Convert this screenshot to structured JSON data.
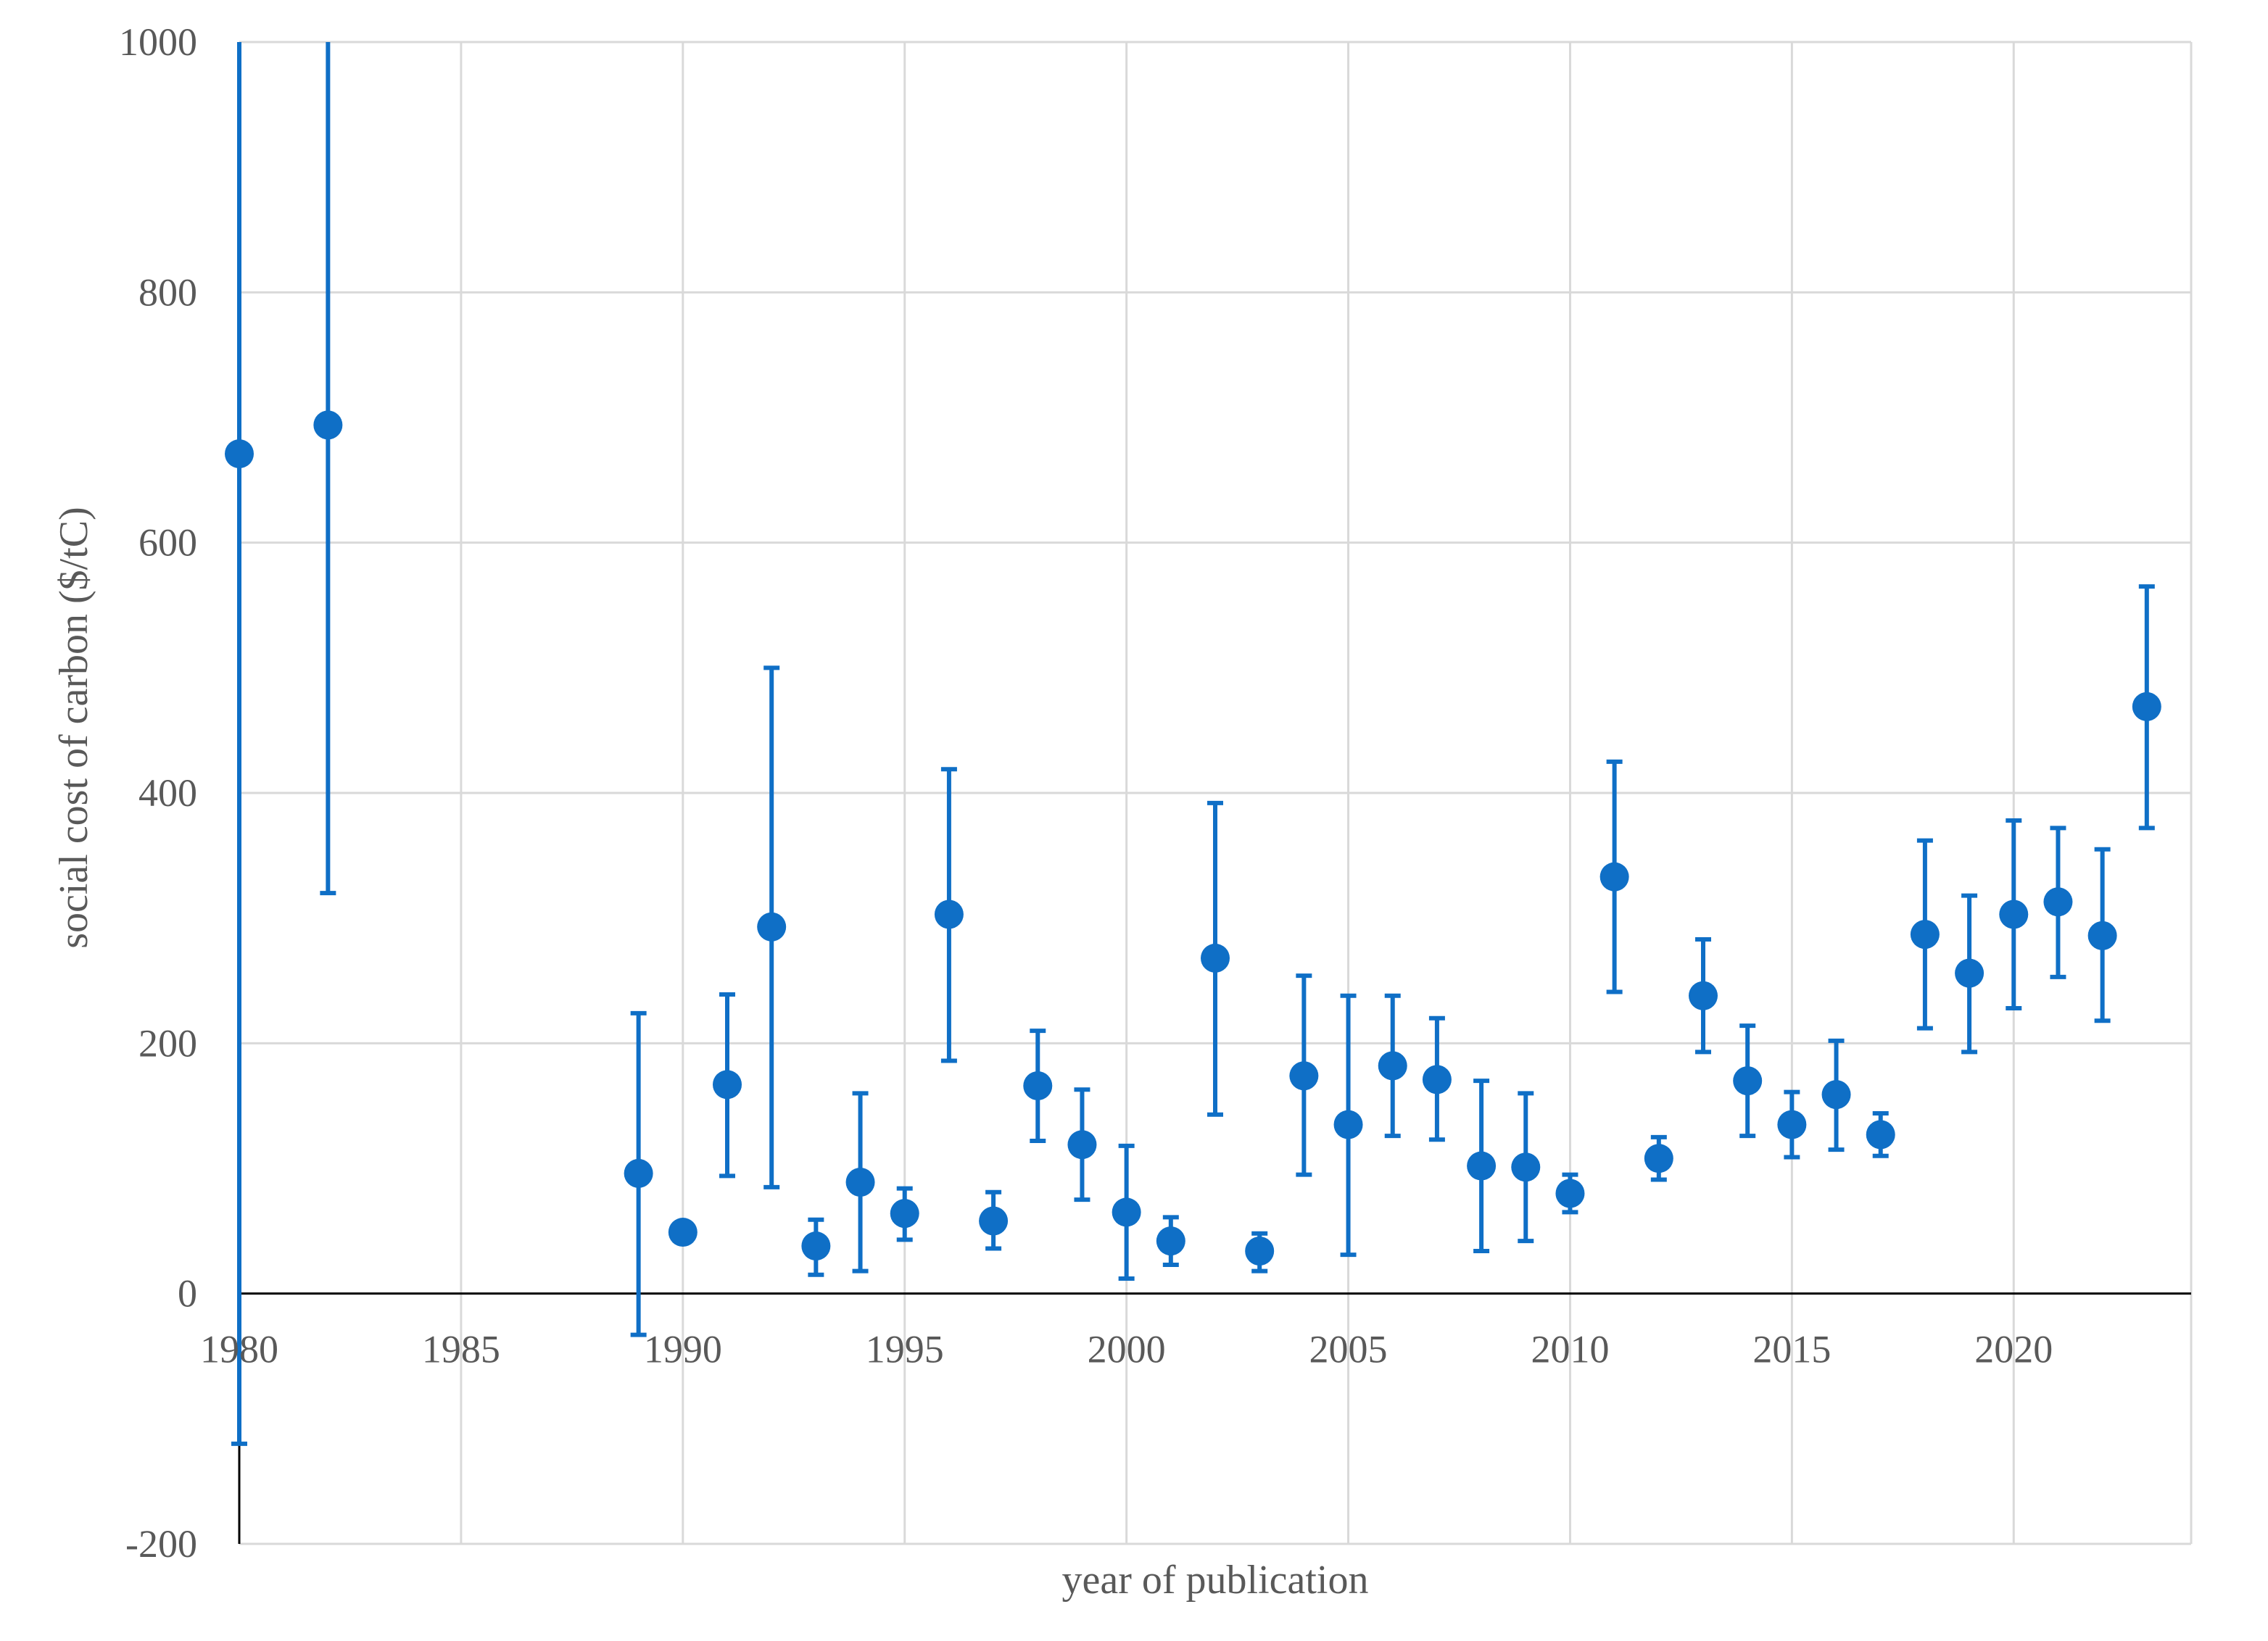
{
  "chart_data": {
    "type": "scatter",
    "title": "",
    "xlabel": "year of publication",
    "ylabel": "social cost of carbon ($/tC)",
    "xlim": [
      1980,
      2024
    ],
    "ylim": [
      -200,
      1000
    ],
    "x_ticks": [
      1980,
      1985,
      1990,
      1995,
      2000,
      2005,
      2010,
      2015,
      2020
    ],
    "y_ticks": [
      -200,
      0,
      200,
      400,
      600,
      800,
      1000
    ],
    "grid": true,
    "legend": "none",
    "series": [
      {
        "name": "social cost of carbon",
        "color": "#0f6fc6",
        "points": [
          {
            "x": 1980,
            "y": 671,
            "low": -120,
            "high": 1000
          },
          {
            "x": 1982,
            "y": 694,
            "low": 320,
            "high": 1000
          },
          {
            "x": 1989,
            "y": 96,
            "low": -33,
            "high": 224
          },
          {
            "x": 1990,
            "y": 49,
            "low": null,
            "high": null
          },
          {
            "x": 1991,
            "y": 167,
            "low": 94,
            "high": 239
          },
          {
            "x": 1992,
            "y": 293,
            "low": 85,
            "high": 500
          },
          {
            "x": 1993,
            "y": 38,
            "low": 15,
            "high": 59
          },
          {
            "x": 1994,
            "y": 89,
            "low": 18,
            "high": 160
          },
          {
            "x": 1995,
            "y": 64,
            "low": 43,
            "high": 84
          },
          {
            "x": 1996,
            "y": 303,
            "low": 186,
            "high": 419
          },
          {
            "x": 1997,
            "y": 58,
            "low": 36,
            "high": 81
          },
          {
            "x": 1998,
            "y": 166,
            "low": 122,
            "high": 210
          },
          {
            "x": 1999,
            "y": 119,
            "low": 75,
            "high": 163
          },
          {
            "x": 2000,
            "y": 65,
            "low": 12,
            "high": 118
          },
          {
            "x": 2001,
            "y": 42,
            "low": 23,
            "high": 61
          },
          {
            "x": 2002,
            "y": 268,
            "low": 143,
            "high": 392
          },
          {
            "x": 2003,
            "y": 34,
            "low": 18,
            "high": 48
          },
          {
            "x": 2004,
            "y": 174,
            "low": 95,
            "high": 254
          },
          {
            "x": 2005,
            "y": 135,
            "low": 31,
            "high": 238
          },
          {
            "x": 2006,
            "y": 182,
            "low": 126,
            "high": 238
          },
          {
            "x": 2007,
            "y": 171,
            "low": 123,
            "high": 220
          },
          {
            "x": 2008,
            "y": 102,
            "low": 34,
            "high": 170
          },
          {
            "x": 2009,
            "y": 101,
            "low": 42,
            "high": 160
          },
          {
            "x": 2010,
            "y": 80,
            "low": 65,
            "high": 95
          },
          {
            "x": 2011,
            "y": 333,
            "low": 241,
            "high": 425
          },
          {
            "x": 2012,
            "y": 108,
            "low": 91,
            "high": 125
          },
          {
            "x": 2013,
            "y": 238,
            "low": 193,
            "high": 283
          },
          {
            "x": 2014,
            "y": 170,
            "low": 126,
            "high": 214
          },
          {
            "x": 2015,
            "y": 135,
            "low": 109,
            "high": 161
          },
          {
            "x": 2016,
            "y": 159,
            "low": 115,
            "high": 202
          },
          {
            "x": 2017,
            "y": 127,
            "low": 110,
            "high": 144
          },
          {
            "x": 2018,
            "y": 287,
            "low": 212,
            "high": 362
          },
          {
            "x": 2019,
            "y": 256,
            "low": 193,
            "high": 318
          },
          {
            "x": 2020,
            "y": 303,
            "low": 228,
            "high": 378
          },
          {
            "x": 2021,
            "y": 313,
            "low": 253,
            "high": 372
          },
          {
            "x": 2022,
            "y": 286,
            "low": 218,
            "high": 355
          },
          {
            "x": 2023,
            "y": 469,
            "low": 372,
            "high": 565
          }
        ]
      }
    ]
  }
}
